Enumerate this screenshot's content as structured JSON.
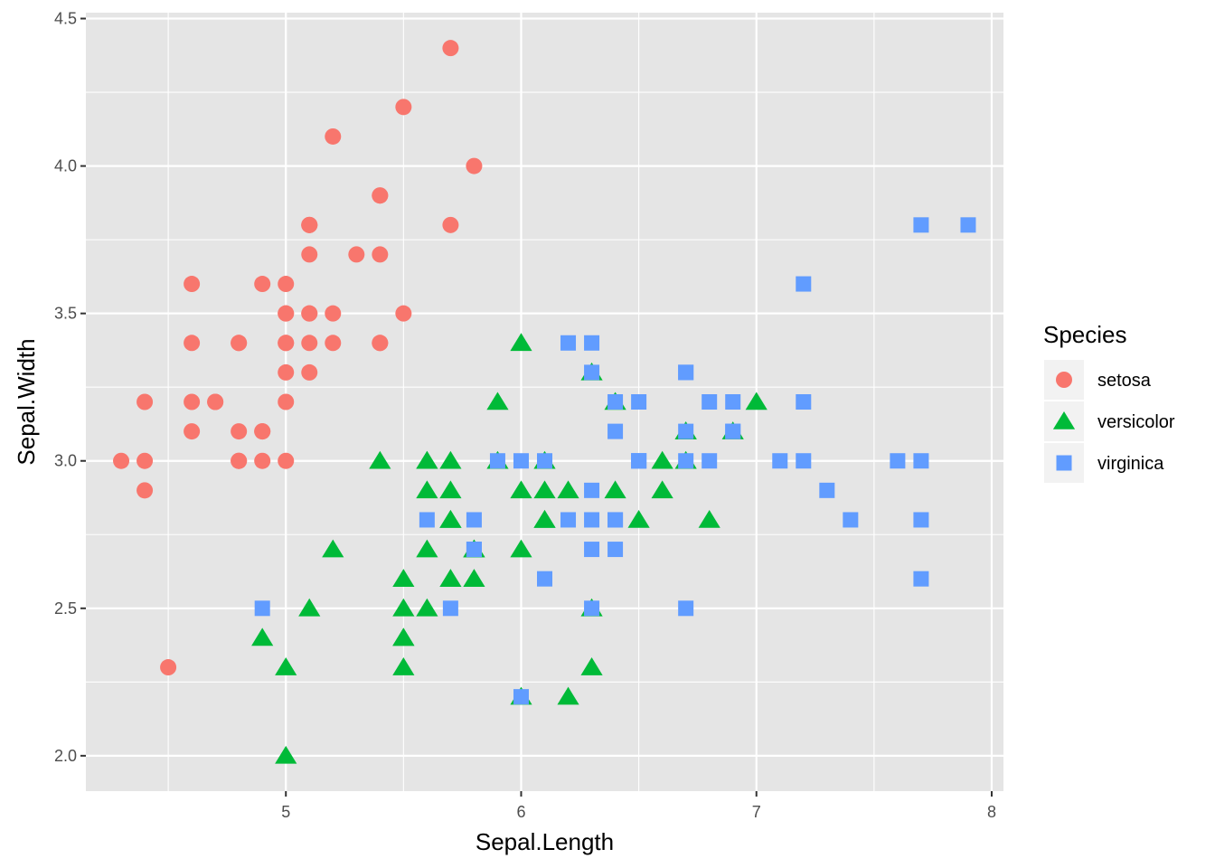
{
  "chart_data": {
    "type": "scatter",
    "title": "",
    "xlabel": "Sepal.Length",
    "ylabel": "Sepal.Width",
    "xlim": [
      4.15,
      8.05
    ],
    "ylim": [
      1.88,
      4.52
    ],
    "x_ticks": [
      5,
      6,
      7,
      8
    ],
    "x_tick_labels": [
      "5",
      "6",
      "7",
      "8"
    ],
    "y_ticks": [
      2.0,
      2.5,
      3.0,
      3.5,
      4.0,
      4.5
    ],
    "y_tick_labels": [
      "2.0",
      "2.5",
      "3.0",
      "3.5",
      "4.0",
      "4.5"
    ],
    "grid": true,
    "panel_background": "#e5e5e5",
    "grid_color": "#ffffff",
    "legend": {
      "title": "Species",
      "placement": "right"
    },
    "series": [
      {
        "name": "setosa",
        "shape": "circle",
        "color": "#F8766D",
        "points": [
          [
            5.1,
            3.5
          ],
          [
            4.9,
            3.0
          ],
          [
            4.7,
            3.2
          ],
          [
            4.6,
            3.1
          ],
          [
            5.0,
            3.6
          ],
          [
            5.4,
            3.9
          ],
          [
            4.6,
            3.4
          ],
          [
            5.0,
            3.4
          ],
          [
            4.4,
            2.9
          ],
          [
            4.9,
            3.1
          ],
          [
            5.4,
            3.7
          ],
          [
            4.8,
            3.4
          ],
          [
            4.8,
            3.0
          ],
          [
            4.3,
            3.0
          ],
          [
            5.8,
            4.0
          ],
          [
            5.7,
            4.4
          ],
          [
            5.4,
            3.9
          ],
          [
            5.1,
            3.5
          ],
          [
            5.7,
            3.8
          ],
          [
            5.1,
            3.8
          ],
          [
            5.4,
            3.4
          ],
          [
            5.1,
            3.7
          ],
          [
            4.6,
            3.6
          ],
          [
            5.1,
            3.3
          ],
          [
            4.8,
            3.4
          ],
          [
            5.0,
            3.0
          ],
          [
            5.0,
            3.4
          ],
          [
            5.2,
            3.5
          ],
          [
            5.2,
            3.4
          ],
          [
            4.7,
            3.2
          ],
          [
            4.8,
            3.1
          ],
          [
            5.4,
            3.4
          ],
          [
            5.2,
            4.1
          ],
          [
            5.5,
            4.2
          ],
          [
            4.9,
            3.1
          ],
          [
            5.0,
            3.2
          ],
          [
            5.5,
            3.5
          ],
          [
            4.9,
            3.6
          ],
          [
            4.4,
            3.0
          ],
          [
            5.1,
            3.4
          ],
          [
            5.0,
            3.5
          ],
          [
            4.5,
            2.3
          ],
          [
            4.4,
            3.2
          ],
          [
            5.0,
            3.5
          ],
          [
            5.1,
            3.8
          ],
          [
            4.8,
            3.0
          ],
          [
            5.1,
            3.8
          ],
          [
            4.6,
            3.2
          ],
          [
            5.3,
            3.7
          ],
          [
            5.0,
            3.3
          ]
        ]
      },
      {
        "name": "versicolor",
        "shape": "triangle",
        "color": "#00BA38",
        "points": [
          [
            7.0,
            3.2
          ],
          [
            6.4,
            3.2
          ],
          [
            6.9,
            3.1
          ],
          [
            5.5,
            2.3
          ],
          [
            6.5,
            2.8
          ],
          [
            5.7,
            2.8
          ],
          [
            6.3,
            3.3
          ],
          [
            4.9,
            2.4
          ],
          [
            6.6,
            2.9
          ],
          [
            5.2,
            2.7
          ],
          [
            5.0,
            2.0
          ],
          [
            5.9,
            3.0
          ],
          [
            6.0,
            2.2
          ],
          [
            6.1,
            2.9
          ],
          [
            5.6,
            2.9
          ],
          [
            6.7,
            3.1
          ],
          [
            5.6,
            3.0
          ],
          [
            5.8,
            2.7
          ],
          [
            6.2,
            2.2
          ],
          [
            5.6,
            2.5
          ],
          [
            5.9,
            3.2
          ],
          [
            6.1,
            2.8
          ],
          [
            6.3,
            2.5
          ],
          [
            6.1,
            2.8
          ],
          [
            6.4,
            2.9
          ],
          [
            6.6,
            3.0
          ],
          [
            6.8,
            2.8
          ],
          [
            6.7,
            3.0
          ],
          [
            6.0,
            2.9
          ],
          [
            5.7,
            2.6
          ],
          [
            5.5,
            2.4
          ],
          [
            5.5,
            2.4
          ],
          [
            5.8,
            2.7
          ],
          [
            6.0,
            2.7
          ],
          [
            5.4,
            3.0
          ],
          [
            6.0,
            3.4
          ],
          [
            6.7,
            3.1
          ],
          [
            6.3,
            2.3
          ],
          [
            5.6,
            3.0
          ],
          [
            5.5,
            2.5
          ],
          [
            5.5,
            2.6
          ],
          [
            6.1,
            3.0
          ],
          [
            5.8,
            2.6
          ],
          [
            5.0,
            2.3
          ],
          [
            5.6,
            2.7
          ],
          [
            5.7,
            3.0
          ],
          [
            5.7,
            2.9
          ],
          [
            6.2,
            2.9
          ],
          [
            5.1,
            2.5
          ],
          [
            5.7,
            2.8
          ]
        ]
      },
      {
        "name": "virginica",
        "shape": "square",
        "color": "#619CFF",
        "points": [
          [
            6.3,
            3.3
          ],
          [
            5.8,
            2.7
          ],
          [
            7.1,
            3.0
          ],
          [
            6.3,
            2.9
          ],
          [
            6.5,
            3.0
          ],
          [
            7.6,
            3.0
          ],
          [
            4.9,
            2.5
          ],
          [
            7.3,
            2.9
          ],
          [
            6.7,
            2.5
          ],
          [
            7.2,
            3.6
          ],
          [
            6.5,
            3.2
          ],
          [
            6.4,
            2.7
          ],
          [
            6.8,
            3.0
          ],
          [
            5.7,
            2.5
          ],
          [
            5.8,
            2.8
          ],
          [
            6.4,
            3.2
          ],
          [
            6.5,
            3.0
          ],
          [
            7.7,
            3.8
          ],
          [
            7.7,
            2.6
          ],
          [
            6.0,
            2.2
          ],
          [
            6.9,
            3.2
          ],
          [
            5.6,
            2.8
          ],
          [
            7.7,
            2.8
          ],
          [
            6.3,
            2.7
          ],
          [
            6.7,
            3.3
          ],
          [
            7.2,
            3.2
          ],
          [
            6.2,
            2.8
          ],
          [
            6.1,
            3.0
          ],
          [
            6.4,
            2.8
          ],
          [
            7.2,
            3.0
          ],
          [
            7.4,
            2.8
          ],
          [
            7.9,
            3.8
          ],
          [
            6.4,
            2.8
          ],
          [
            6.3,
            2.8
          ],
          [
            6.1,
            2.6
          ],
          [
            7.7,
            3.0
          ],
          [
            6.3,
            3.4
          ],
          [
            6.4,
            3.1
          ],
          [
            6.0,
            3.0
          ],
          [
            6.9,
            3.1
          ],
          [
            6.7,
            3.1
          ],
          [
            6.9,
            3.1
          ],
          [
            5.8,
            2.7
          ],
          [
            6.8,
            3.2
          ],
          [
            6.7,
            3.3
          ],
          [
            6.7,
            3.0
          ],
          [
            6.3,
            2.5
          ],
          [
            6.5,
            3.0
          ],
          [
            6.2,
            3.4
          ],
          [
            5.9,
            3.0
          ]
        ]
      }
    ]
  }
}
